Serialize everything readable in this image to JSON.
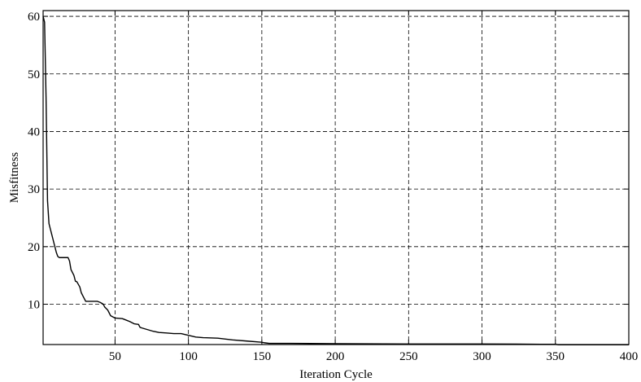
{
  "chart_data": {
    "type": "line",
    "title": "",
    "xlabel": "Iteration Cycle",
    "ylabel": "Misfitness",
    "xlim": [
      1,
      400
    ],
    "ylim": [
      3,
      61
    ],
    "grid": true,
    "grid_style": "dashed",
    "line_color": "#000000",
    "xticks": [
      50,
      100,
      150,
      200,
      250,
      300,
      350,
      400
    ],
    "yticks": [
      10,
      20,
      30,
      40,
      50,
      60
    ],
    "series": [
      {
        "x": [
          1,
          2,
          3,
          4,
          5,
          6,
          7,
          8,
          9,
          10,
          11,
          12,
          15,
          18,
          19,
          20,
          22,
          23,
          24,
          26,
          27,
          28,
          29,
          30,
          32,
          34,
          36,
          38,
          40,
          42,
          43,
          45,
          46,
          47,
          50,
          55,
          58,
          60,
          63,
          66,
          67,
          68,
          72,
          76,
          80,
          85,
          90,
          95,
          100,
          105,
          110,
          120,
          130,
          140,
          150,
          152,
          155,
          160,
          170,
          200,
          250,
          300,
          340,
          350,
          352,
          360,
          370,
          380,
          390,
          400
        ],
        "y": [
          60,
          59,
          46,
          28,
          24,
          23,
          22,
          21,
          20,
          19,
          18.3,
          18.1,
          18.1,
          18.1,
          17.5,
          16,
          15,
          14,
          13.9,
          13,
          12,
          11.5,
          11,
          10.5,
          10.5,
          10.5,
          10.5,
          10.5,
          10.3,
          10,
          9.5,
          9,
          8.5,
          8,
          7.6,
          7.5,
          7.2,
          7,
          6.6,
          6.5,
          6,
          5.9,
          5.6,
          5.3,
          5.1,
          5,
          4.9,
          4.9,
          4.6,
          4.3,
          4.2,
          4.1,
          3.8,
          3.6,
          3.4,
          3.3,
          3.2,
          3.2,
          3.2,
          3.15,
          3.1,
          3.1,
          3.05,
          3.05,
          2.95,
          2.95,
          2.95,
          2.95,
          2.95,
          2.95
        ]
      }
    ]
  }
}
